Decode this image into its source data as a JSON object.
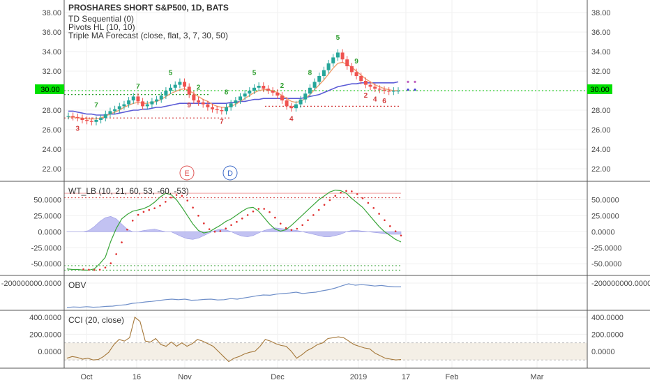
{
  "symbol_line": "PROSHARES SHORT S&P500, 1D, BATS",
  "indicators": [
    "TD Sequential (0)",
    "Pivots HL (10, 10)",
    "Triple MA Forecast (close, flat, 3, 7, 30, 50)"
  ],
  "event_badges": [
    {
      "label": "E",
      "color": "#e05757"
    },
    {
      "label": "D",
      "color": "#3f6cc9"
    }
  ],
  "current_price_label": "30.00",
  "colors": {
    "up": "#26a69a",
    "down": "#ef5350",
    "ma_fast": "#f0a070",
    "ma_slow": "#5b5bd6",
    "wt_fill": "#b8b8f0",
    "obv": "#6f8fc9",
    "cci": "#a5783a",
    "tag_green": "#2e9e2e",
    "tag_red": "#d23b3b",
    "price_badge": "#00e000"
  },
  "chart_data": [
    {
      "type": "candlestick",
      "name": "price",
      "title": "PROSHARES SHORT S&P500, 1D, BATS",
      "ylim": [
        21,
        39
      ],
      "yticks": [
        "38.00",
        "36.00",
        "34.00",
        "32.00",
        "30.00",
        "28.00",
        "26.00",
        "24.00",
        "22.00"
      ],
      "ytick_values": [
        38,
        36,
        34,
        32,
        30,
        28,
        26,
        24,
        22
      ],
      "closes": [
        27.4,
        27.3,
        27.2,
        27.0,
        26.9,
        26.8,
        27.0,
        27.2,
        27.6,
        27.9,
        28.1,
        28.4,
        28.6,
        29.0,
        29.4,
        28.9,
        28.4,
        28.6,
        28.9,
        29.1,
        29.5,
        30.0,
        30.3,
        30.6,
        30.9,
        30.4,
        29.6,
        29.0,
        28.8,
        28.6,
        28.3,
        28.1,
        28.0,
        27.9,
        28.3,
        28.7,
        29.0,
        29.4,
        29.7,
        30.0,
        30.3,
        30.5,
        30.2,
        30.0,
        29.8,
        29.5,
        29.0,
        28.4,
        28.2,
        28.6,
        29.1,
        29.7,
        30.3,
        30.9,
        31.5,
        32.1,
        32.8,
        33.4,
        33.9,
        33.2,
        32.5,
        31.9,
        31.5,
        31.0,
        30.6,
        30.4,
        30.2,
        30.1,
        30.0,
        29.9,
        30.0,
        30.0
      ],
      "ma_fast": [
        27.3,
        27.3,
        27.2,
        27.2,
        27.1,
        27.1,
        27.1,
        27.2,
        27.4,
        27.6,
        27.8,
        28.0,
        28.3,
        28.5,
        28.7,
        28.8,
        28.7,
        28.7,
        28.8,
        28.9,
        29.1,
        29.4,
        29.7,
        29.9,
        30.1,
        30.2,
        30.0,
        29.7,
        29.4,
        29.1,
        28.9,
        28.6,
        28.4,
        28.3,
        28.3,
        28.4,
        28.6,
        28.9,
        29.2,
        29.5,
        29.8,
        30.0,
        30.1,
        30.1,
        30.0,
        29.8,
        29.5,
        29.2,
        28.9,
        28.8,
        28.9,
        29.2,
        29.6,
        30.1,
        30.6,
        31.1,
        31.7,
        32.3,
        32.8,
        32.9,
        32.7,
        32.4,
        32.0,
        31.6,
        31.2,
        30.9,
        30.6,
        30.4,
        30.2,
        30.1,
        30.0,
        30.0
      ],
      "ma_slow": [
        27.9,
        27.9,
        27.8,
        27.7,
        27.6,
        27.6,
        27.5,
        27.5,
        27.5,
        27.6,
        27.6,
        27.7,
        27.8,
        27.9,
        28.0,
        28.0,
        28.1,
        28.1,
        28.2,
        28.3,
        28.3,
        28.4,
        28.5,
        28.6,
        28.7,
        28.7,
        28.7,
        28.7,
        28.7,
        28.7,
        28.7,
        28.7,
        28.7,
        28.7,
        28.7,
        28.8,
        28.8,
        28.9,
        28.9,
        29.0,
        29.1,
        29.1,
        29.2,
        29.2,
        29.2,
        29.2,
        29.2,
        29.2,
        29.2,
        29.2,
        29.2,
        29.3,
        29.4,
        29.5,
        29.6,
        29.8,
        30.0,
        30.2,
        30.4,
        30.5,
        30.6,
        30.7,
        30.7,
        30.8,
        30.8,
        30.8,
        30.8,
        30.8,
        30.8,
        30.8,
        30.8,
        30.9
      ],
      "support_level": 28.4,
      "low_level": 27.2,
      "resistance_level": 29.6,
      "x_ticks": [
        "Oct",
        "16",
        "Nov",
        "Dec",
        "2019",
        "17",
        "Feb",
        "Mar"
      ]
    },
    {
      "type": "line",
      "name": "WT_LB",
      "title": "WT_LB (10, 21, 60, 53, -60, -53)",
      "ylim": [
        -65,
        70
      ],
      "yticks": [
        "50.0000",
        "25.0000",
        "0.0000",
        "-25.0000",
        "-50.0000"
      ],
      "ytick_values": [
        50,
        25,
        0,
        -25,
        -50
      ],
      "levels": [
        60,
        53,
        -53,
        -60
      ],
      "wt1": [
        -58,
        -59,
        -59,
        -60,
        -60,
        -58,
        -50,
        -40,
        -15,
        5,
        20,
        27,
        32,
        34,
        36,
        40,
        46,
        54,
        60,
        58,
        50,
        38,
        25,
        12,
        2,
        -2,
        0,
        5,
        10,
        16,
        20,
        26,
        32,
        37,
        38,
        32,
        22,
        12,
        4,
        1,
        3,
        10,
        18,
        26,
        34,
        42,
        50,
        56,
        62,
        65,
        64,
        60,
        52,
        45,
        38,
        28,
        18,
        8,
        0,
        -6,
        -12,
        -16
      ],
      "wt_fill": [
        0,
        0,
        0,
        0,
        2,
        8,
        16,
        22,
        24,
        20,
        12,
        4,
        0,
        0,
        2,
        3,
        4,
        2,
        0,
        0,
        -4,
        -8,
        -11,
        -12,
        -10,
        -6,
        -2,
        2,
        4,
        3,
        0,
        -4,
        -7,
        -8,
        -6,
        -2,
        2,
        4,
        6,
        5,
        4,
        3,
        2,
        0,
        -2,
        -4,
        -6,
        -8,
        -8,
        -6,
        -4,
        0,
        2,
        2,
        1,
        0,
        -1,
        -2,
        -3,
        -4,
        -4,
        -4
      ]
    },
    {
      "type": "line",
      "name": "OBV",
      "title": "OBV",
      "yticks": [
        "-200000000.0000"
      ],
      "ytick_values": [
        -200000000
      ],
      "values": [
        -1.0,
        -0.98,
        -0.99,
        -0.97,
        -0.99,
        -0.98,
        -0.96,
        -0.95,
        -0.92,
        -0.9,
        -0.85,
        -0.83,
        -0.8,
        -0.78,
        -0.75,
        -0.72,
        -0.7,
        -0.72,
        -0.7,
        -0.74,
        -0.73,
        -0.71,
        -0.7,
        -0.73,
        -0.72,
        -0.68,
        -0.7,
        -0.66,
        -0.62,
        -0.58,
        -0.55,
        -0.56,
        -0.52,
        -0.5,
        -0.48,
        -0.45,
        -0.5,
        -0.47,
        -0.45,
        -0.4,
        -0.36,
        -0.3,
        -0.22,
        -0.15,
        -0.2,
        -0.18,
        -0.2,
        -0.23,
        -0.21,
        -0.24,
        -0.26,
        -0.26
      ]
    },
    {
      "type": "line",
      "name": "CCI",
      "title": "CCI (20, close)",
      "ylim": [
        -180,
        440
      ],
      "yticks": [
        "400.0000",
        "200.0000",
        "0.0000"
      ],
      "ytick_values": [
        400,
        200,
        0
      ],
      "band": [
        100,
        -100
      ],
      "values": [
        -80,
        -60,
        -70,
        -90,
        -80,
        -100,
        -95,
        -60,
        -10,
        80,
        140,
        120,
        160,
        400,
        350,
        120,
        110,
        150,
        80,
        60,
        110,
        60,
        100,
        60,
        90,
        140,
        120,
        90,
        60,
        0,
        -60,
        -120,
        -80,
        -60,
        -30,
        -10,
        0,
        60,
        140,
        120,
        90,
        70,
        60,
        0,
        -80,
        -40,
        10,
        40,
        80,
        100,
        150,
        160,
        170,
        160,
        120,
        80,
        60,
        40,
        30,
        -20,
        -50,
        -80,
        -90,
        -100,
        -95
      ]
    }
  ]
}
